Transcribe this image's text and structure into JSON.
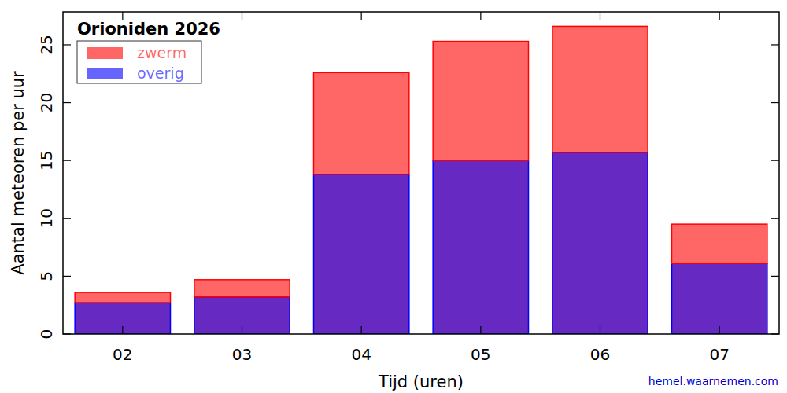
{
  "chart_data": {
    "type": "bar",
    "title": "Orioniden 2026",
    "x_label": "Tijd (uren)",
    "y_label": "Aantal meteoren per uur",
    "annotation": "hemel.waarnemen.com",
    "categories": [
      "02",
      "03",
      "04",
      "05",
      "06",
      "07"
    ],
    "series": [
      {
        "name": "overig",
        "color": "#0000ff",
        "values": [
          2.7,
          3.2,
          13.8,
          15.0,
          15.7,
          6.1
        ]
      },
      {
        "name": "zwerm",
        "color": "#ff0000",
        "values": [
          0.9,
          1.5,
          8.8,
          10.3,
          10.9,
          3.4
        ]
      }
    ],
    "stacked": true,
    "legend": "upper left",
    "grid": false,
    "ylim": [
      0,
      27.85
    ],
    "yticks": [
      0,
      5,
      10,
      15,
      20,
      25
    ]
  }
}
